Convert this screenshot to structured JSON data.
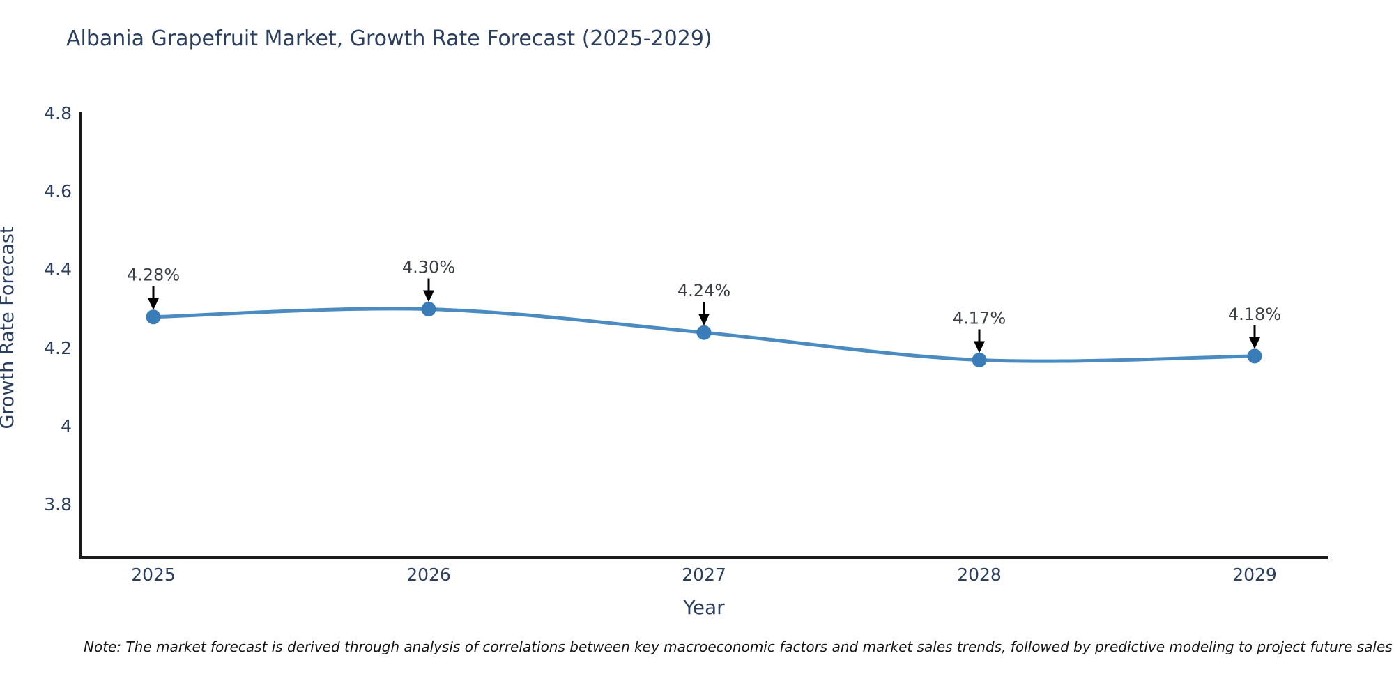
{
  "note": "Note: The market forecast is derived through analysis of correlations between key macroeconomic factors and market sales trends, followed by predictive modeling to project future sales",
  "colors": {
    "title_text": "#2a3f5f",
    "tick_text": "#2a3f5f",
    "axis_line": "#1a1a1a",
    "line": "#4a8bc2",
    "marker": "#3a7cb8",
    "annotation_text": "#3a3f47",
    "arrow": "#000000",
    "note_text": "#141414",
    "background": "#ffffff"
  },
  "chart_data": {
    "type": "line",
    "title": "Albania Grapefruit Market, Growth Rate Forecast (2025-2029)",
    "x": [
      "2025",
      "2026",
      "2027",
      "2028",
      "2029"
    ],
    "values": [
      4.28,
      4.3,
      4.24,
      4.17,
      4.18
    ],
    "point_labels": [
      "4.28%",
      "4.30%",
      "4.24%",
      "4.17%",
      "4.18%"
    ],
    "xlabel": "Year",
    "ylabel": "Growth Rate Forecast",
    "yticks": [
      3.8,
      4.0,
      4.2,
      4.4,
      4.6,
      4.8
    ],
    "ytick_labels": [
      "3.8",
      "4",
      "4.2",
      "4.4",
      "4.6",
      "4.8"
    ],
    "ylim": [
      3.665,
      4.805
    ],
    "grid": false,
    "legend": false,
    "line_shape": "spline",
    "annotations": "black arrows pointing down from each percentage label to its data point"
  }
}
